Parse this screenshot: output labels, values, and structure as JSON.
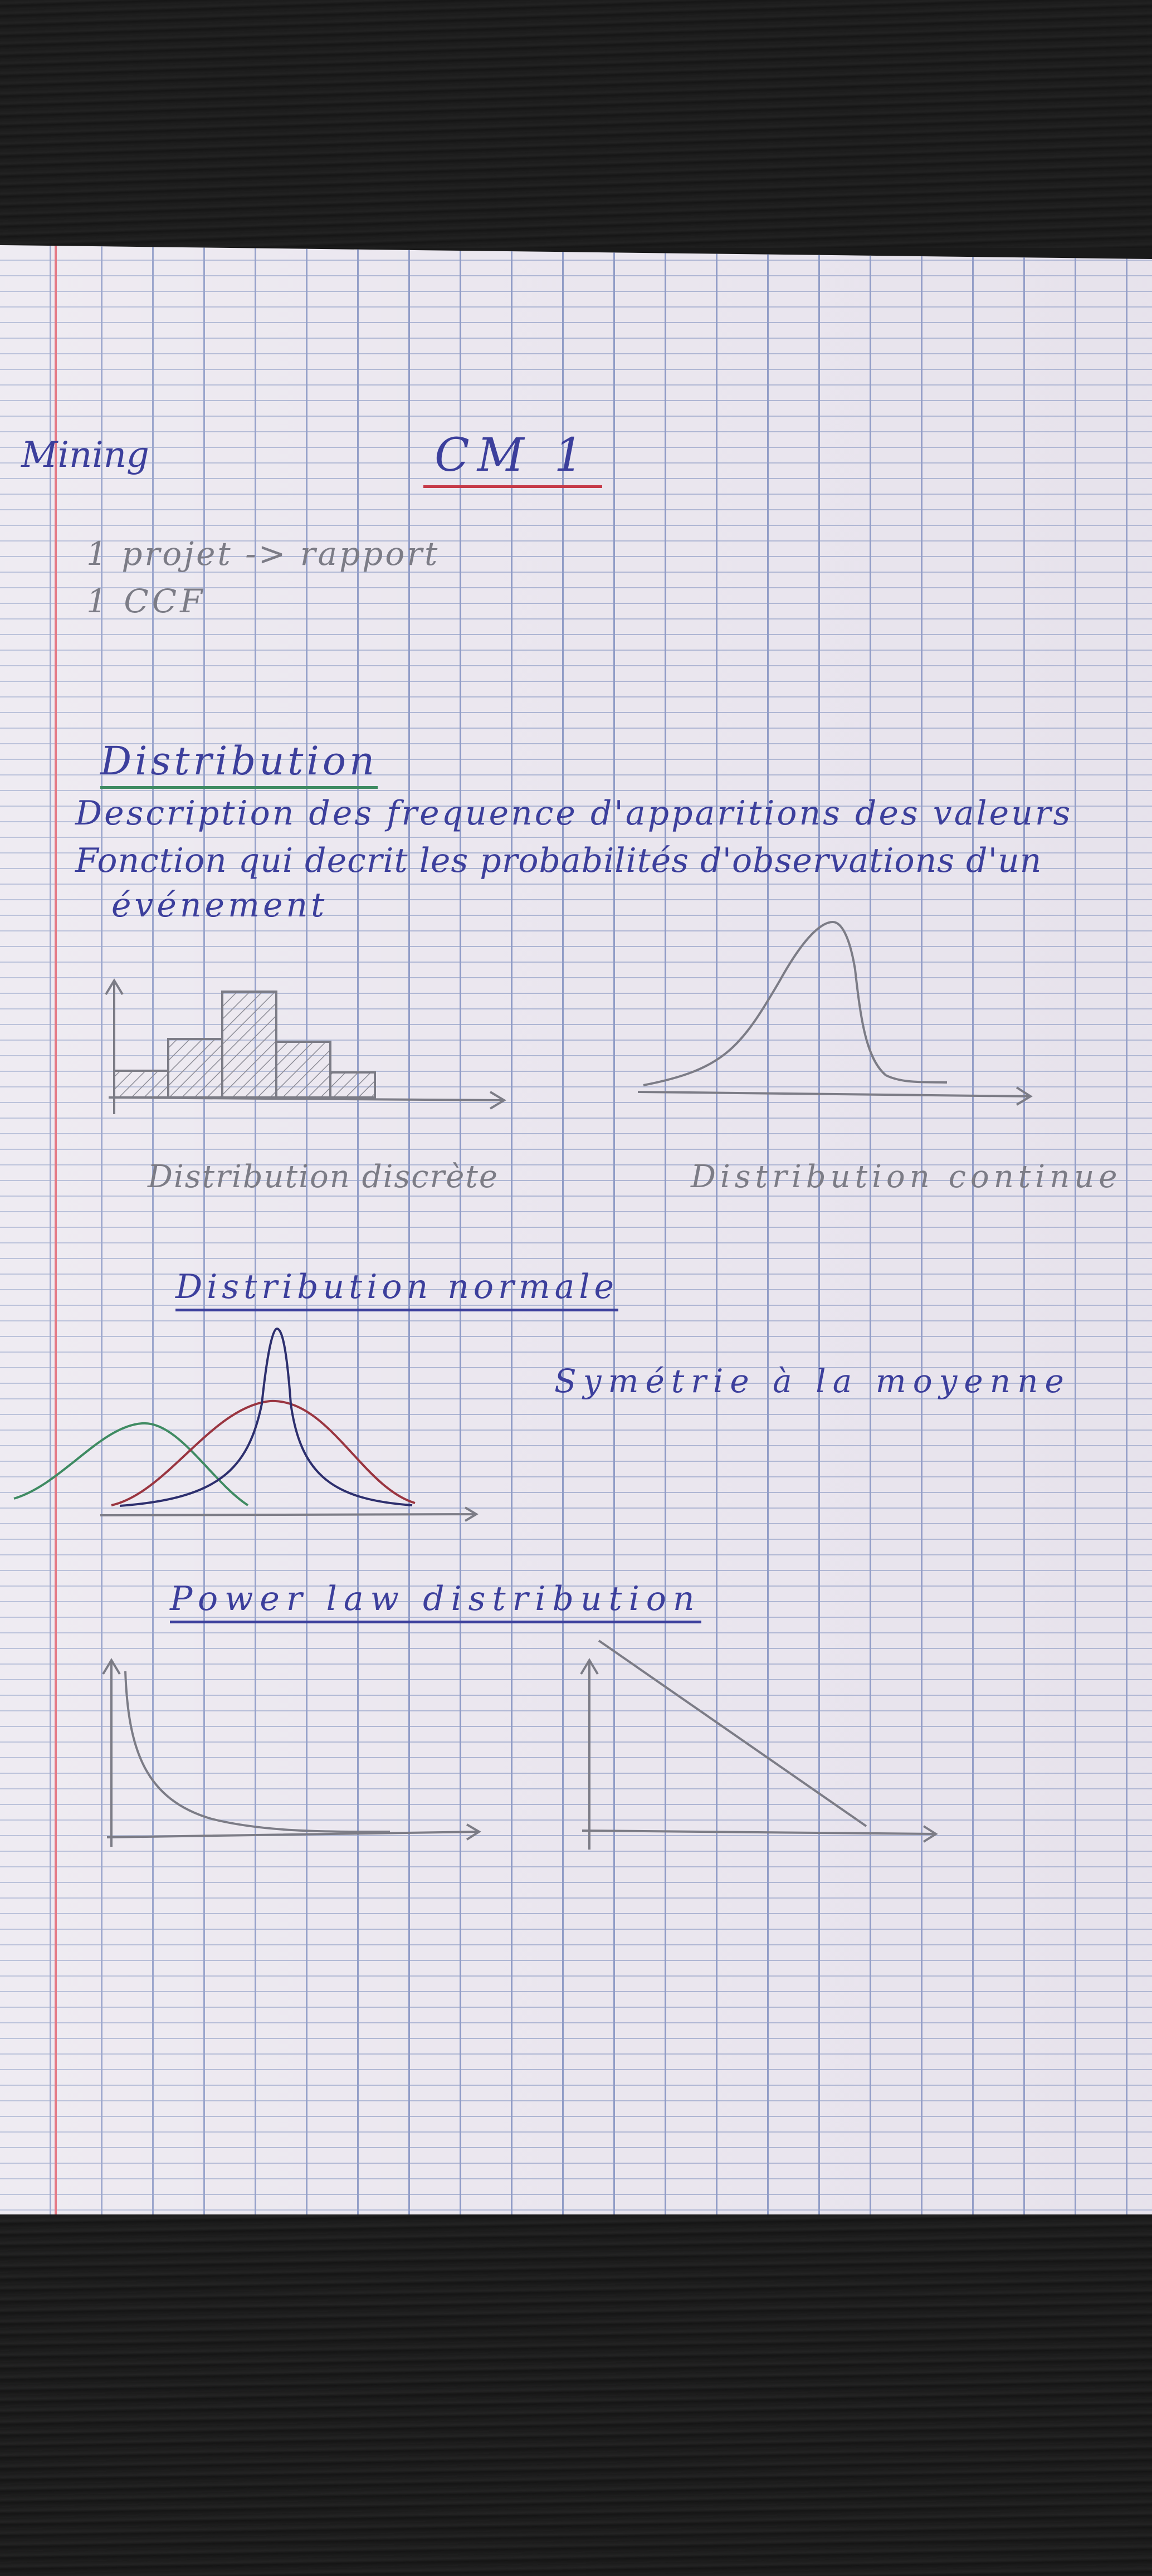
{
  "header": {
    "course": "Mining",
    "title": "CM 1"
  },
  "intro": {
    "line1": "1 projet -> rapport",
    "line2": "1 CCF"
  },
  "distribution": {
    "heading": "Distribution",
    "definition1": "Description des frequence d'apparitions des valeurs",
    "definition2": "Fonction qui decrit les probabilités d'observations d'un",
    "definition3": "événement",
    "discrete_caption": "Distribution discrète",
    "continuous_caption": "Distribution continue"
  },
  "normal": {
    "heading": "Distribution normale",
    "note": "Symétrie à la moyenne"
  },
  "power_law": {
    "heading": "Power law distribution"
  },
  "ink_colors": {
    "blue_pen": "#3c3f9c",
    "pencil": "#7c7c86",
    "red_pen": "#c63a48",
    "green_pen": "#3f8b62",
    "margin": "#e47a86"
  }
}
